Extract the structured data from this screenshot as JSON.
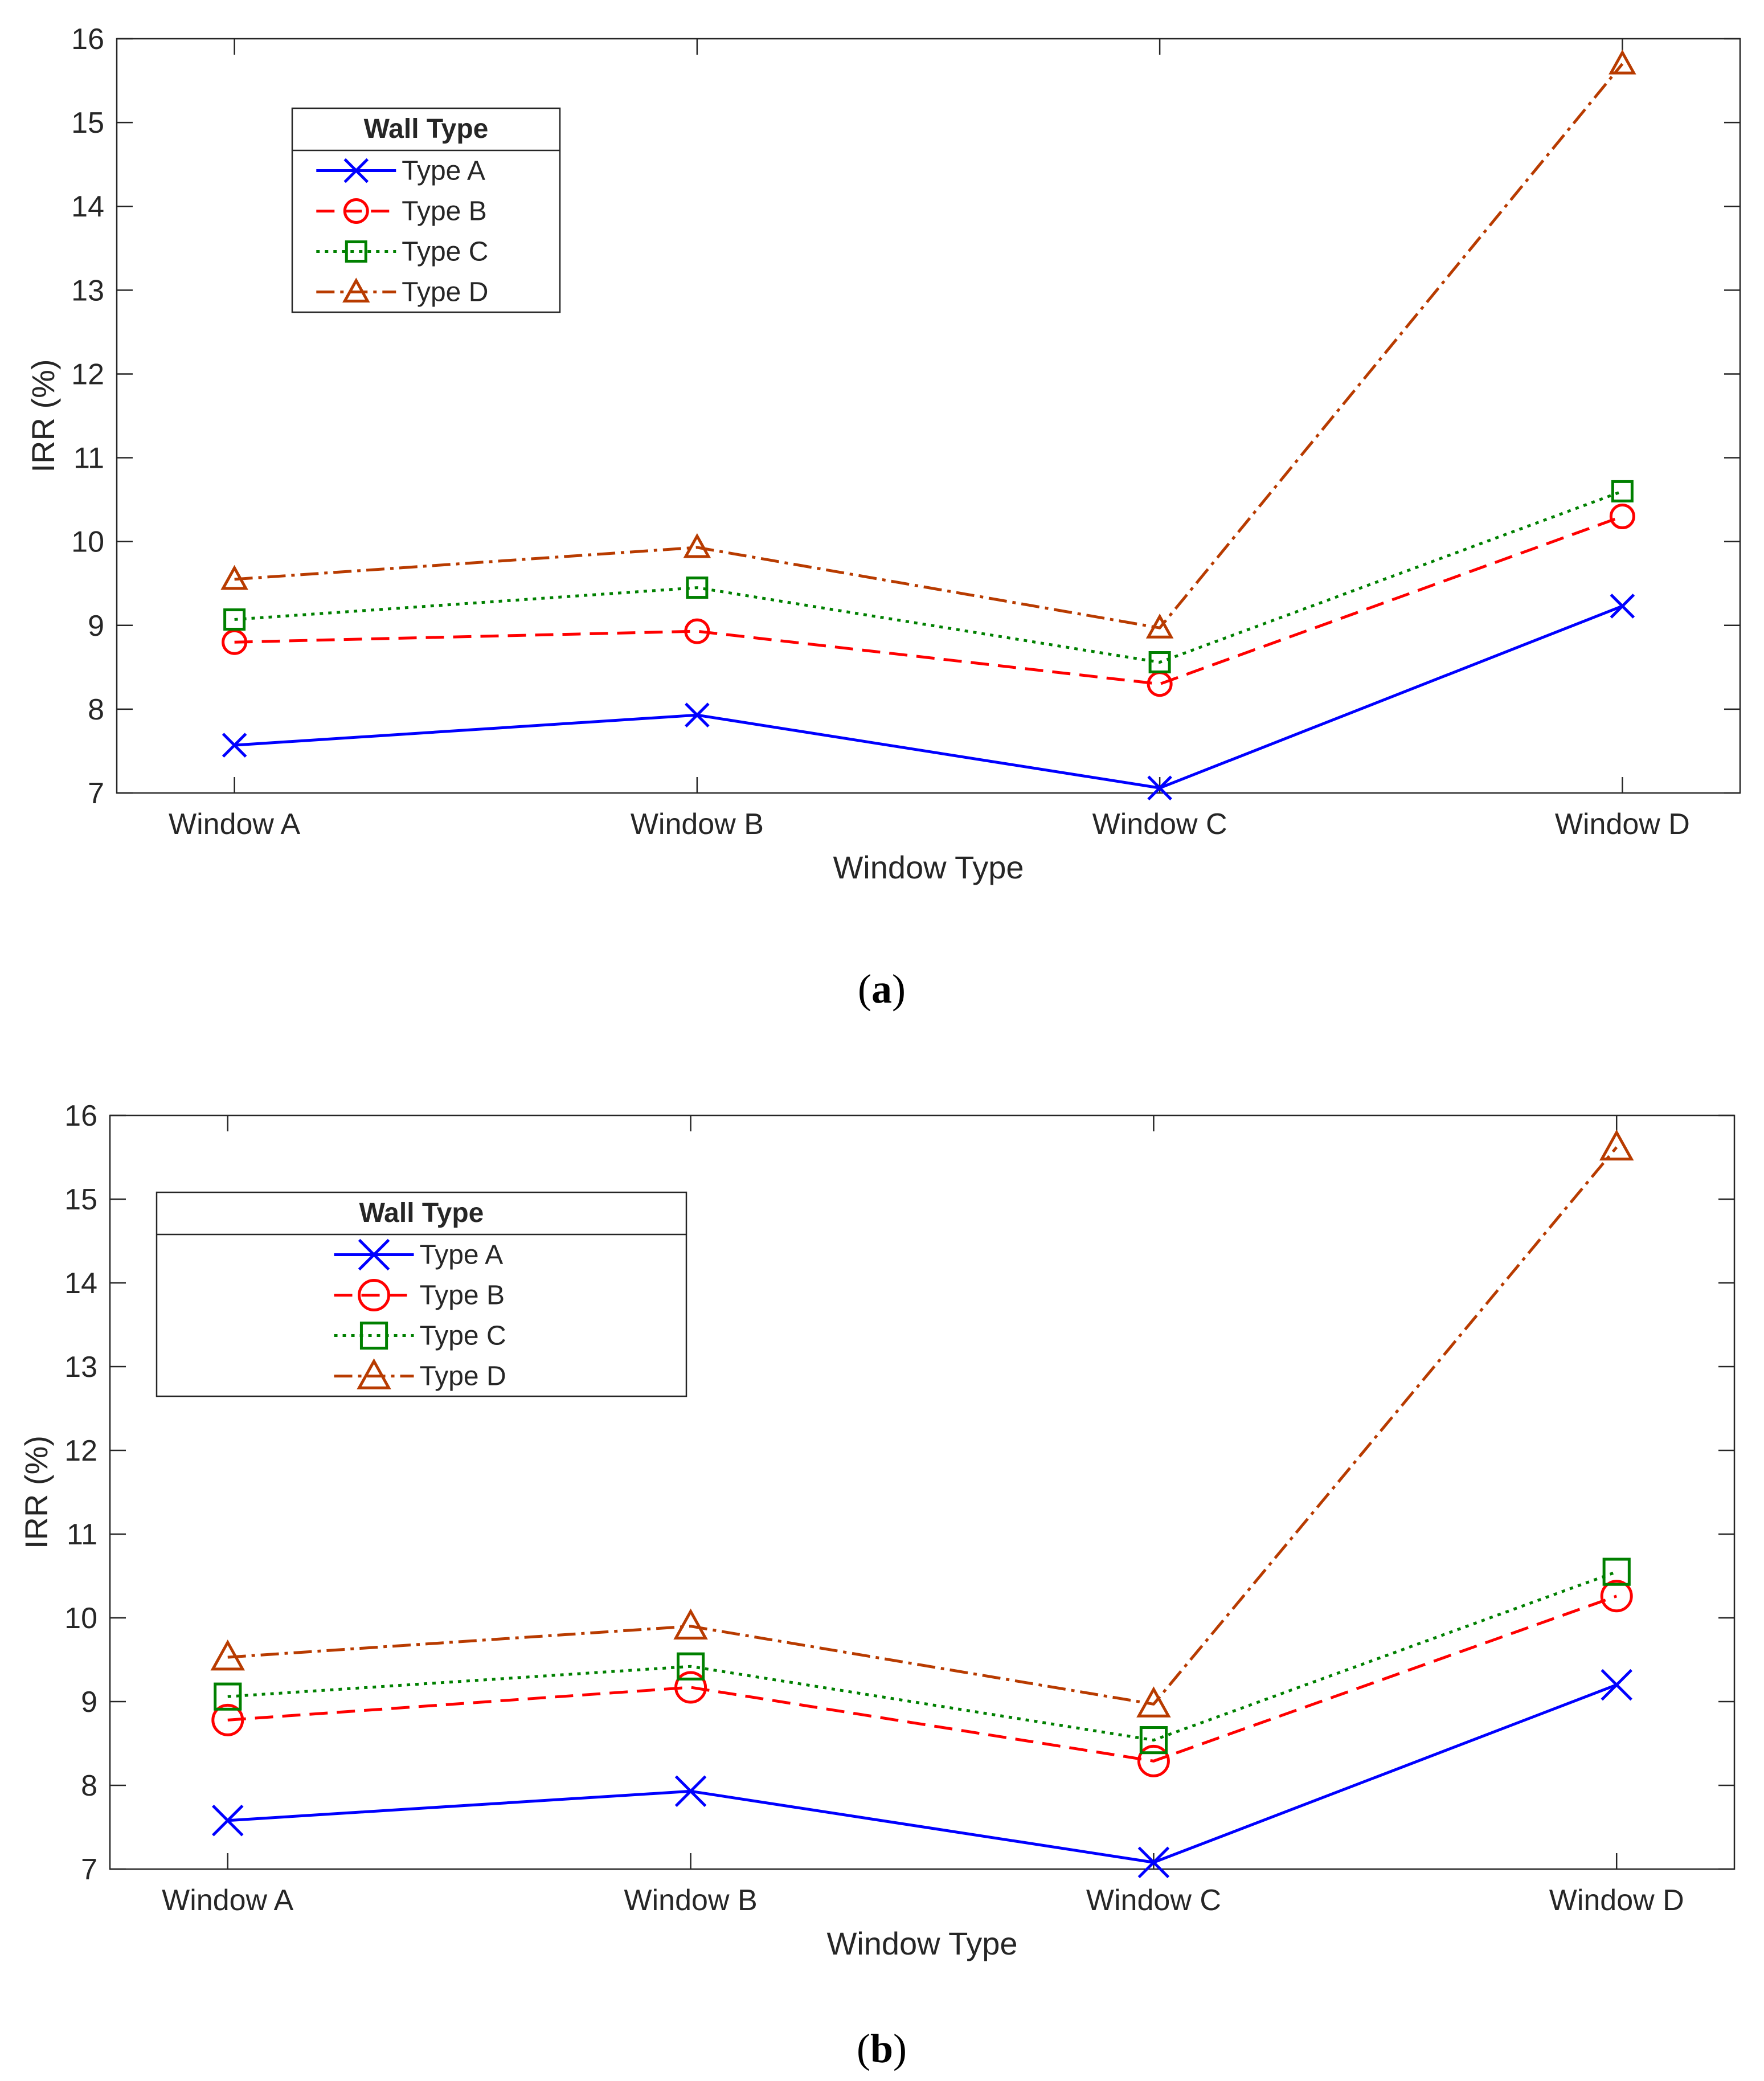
{
  "chart_data": [
    {
      "type": "line",
      "caption_letter": "a",
      "categories": [
        "Window A",
        "Window B",
        "Window C",
        "Window D"
      ],
      "xlabel": "Window Type",
      "ylabel": "IRR (%)",
      "ylim": [
        7,
        16
      ],
      "yticks": [
        "7",
        "8",
        "9",
        "10",
        "11",
        "12",
        "13",
        "14",
        "15",
        "16"
      ],
      "legend_title": "Wall Type",
      "legend_position": "top-left",
      "series": [
        {
          "name": "Type A",
          "values": [
            7.57,
            7.93,
            7.06,
            9.23
          ],
          "color": "#0000ff",
          "dash": "solid",
          "marker": "x"
        },
        {
          "name": "Type B",
          "values": [
            8.8,
            8.93,
            8.3,
            10.3
          ],
          "color": "#ff0000",
          "dash": "dashed",
          "marker": "circle"
        },
        {
          "name": "Type C",
          "values": [
            9.07,
            9.45,
            8.56,
            10.6
          ],
          "color": "#008000",
          "dash": "dotted",
          "marker": "square"
        },
        {
          "name": "Type D",
          "values": [
            9.55,
            9.93,
            8.97,
            15.7
          ],
          "color": "#b83b00",
          "dash": "dashdot",
          "marker": "triangle"
        }
      ]
    },
    {
      "type": "line",
      "caption_letter": "b",
      "categories": [
        "Window A",
        "Window B",
        "Window C",
        "Window D"
      ],
      "xlabel": "Window Type",
      "ylabel": "IRR (%)",
      "ylim": [
        7,
        16
      ],
      "yticks": [
        "7",
        "8",
        "9",
        "10",
        "11",
        "12",
        "13",
        "14",
        "15",
        "16"
      ],
      "legend_title": "Wall Type",
      "legend_position": "top-left",
      "series": [
        {
          "name": "Type A",
          "values": [
            7.58,
            7.93,
            7.08,
            9.2
          ],
          "color": "#0000ff",
          "dash": "solid",
          "marker": "x"
        },
        {
          "name": "Type B",
          "values": [
            8.78,
            9.17,
            8.29,
            10.26
          ],
          "color": "#ff0000",
          "dash": "dashed",
          "marker": "circle"
        },
        {
          "name": "Type C",
          "values": [
            9.06,
            9.42,
            8.54,
            10.55
          ],
          "color": "#008000",
          "dash": "dotted",
          "marker": "square"
        },
        {
          "name": "Type D",
          "values": [
            9.53,
            9.9,
            8.97,
            15.62
          ],
          "color": "#b83b00",
          "dash": "dashdot",
          "marker": "triangle"
        }
      ]
    }
  ]
}
